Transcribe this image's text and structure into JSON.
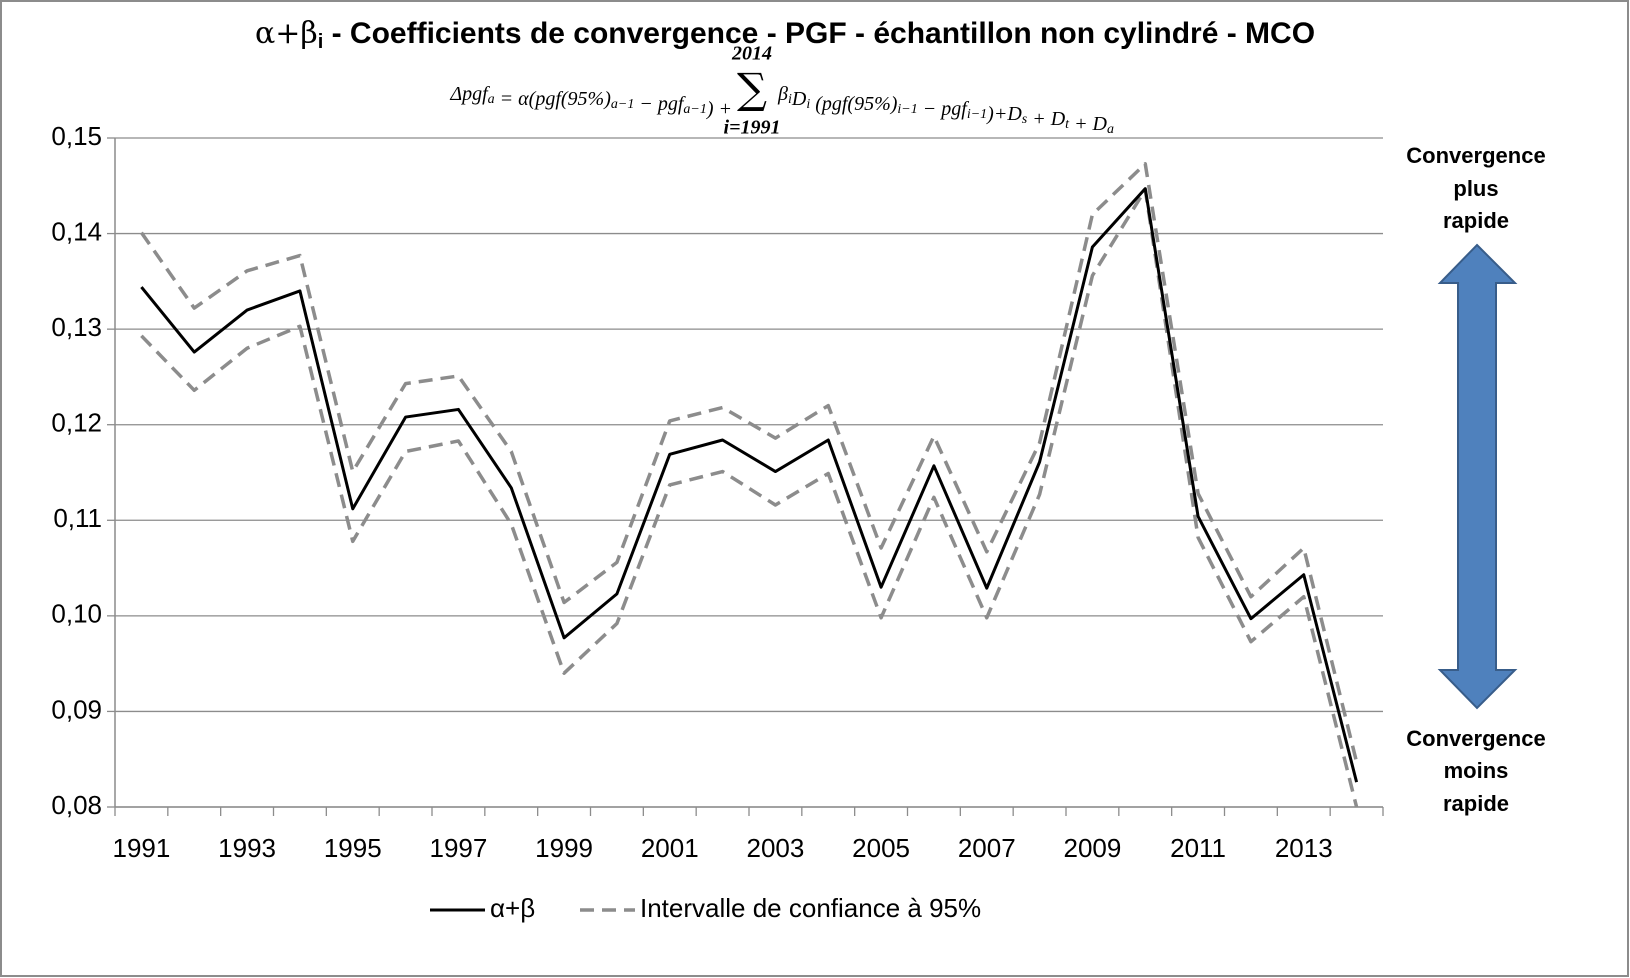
{
  "chart_data": {
    "type": "line",
    "title": {
      "main": "α+β",
      "sub": "i",
      "rest": " - Coefficients de convergence - PGF - échantillon non cylindré - MCO"
    },
    "formula": {
      "left": [
        {
          "t": "Δpgf",
          "sub": "a"
        },
        {
          "t": " = α(pgf(95%)",
          "sub": "a−1"
        },
        {
          "t": " − pgf",
          "sub": "a−1"
        },
        {
          "t": ") + "
        }
      ],
      "sum": "∑",
      "sum_from": "i=1991",
      "sum_to": "2014",
      "right": [
        {
          "t": "β",
          "sub": "i"
        },
        {
          "t": "D",
          "sub": "i"
        },
        {
          "t": " (pgf(95%)",
          "sub": "i−1"
        },
        {
          "t": " − pgf",
          "sub": "i−1"
        },
        {
          "t": ")+D",
          "sub": "s"
        },
        {
          "t": " + D",
          "sub": "t"
        },
        {
          "t": " + D",
          "sub": "a"
        }
      ]
    },
    "categories": [
      "1991",
      null,
      "1993",
      null,
      "1995",
      null,
      "1997",
      null,
      "1999",
      null,
      "2001",
      null,
      "2003",
      null,
      "2005",
      null,
      "2007",
      null,
      "2009",
      null,
      "2011",
      null,
      "2013",
      null
    ],
    "series": [
      {
        "name": "α+β",
        "color": "#000000",
        "dash": false,
        "values": [
          0.1344,
          0.1276,
          0.132,
          0.134,
          0.1112,
          0.1208,
          0.1216,
          0.1134,
          0.0977,
          0.1023,
          0.1169,
          0.1184,
          0.1151,
          0.1184,
          0.103,
          0.1157,
          0.1029,
          0.1161,
          0.1386,
          0.1447,
          0.1104,
          0.0997,
          0.1043,
          0.0826
        ]
      },
      {
        "name": "Intervalle de confiance à 95%",
        "color": "#8c8c8c",
        "dash": true,
        "values": [
          0.1401,
          0.1322,
          0.1361,
          0.1377,
          0.1151,
          0.1243,
          0.1251,
          0.1172,
          0.1014,
          0.1056,
          0.1204,
          0.1218,
          0.1186,
          0.122,
          0.1071,
          0.1188,
          0.1067,
          0.1181,
          0.142,
          0.1473,
          0.1128,
          0.102,
          0.1071,
          0.0847
        ],
        "lower": [
          0.1293,
          0.1236,
          0.128,
          0.1303,
          0.1078,
          0.1172,
          0.1183,
          0.1096,
          0.094,
          0.0992,
          0.1137,
          0.1151,
          0.1116,
          0.1149,
          0.0998,
          0.1124,
          0.0998,
          0.1127,
          0.1356,
          0.1446,
          0.1082,
          0.0973,
          0.102,
          0.08
        ]
      }
    ],
    "ylim": [
      0.08,
      0.15
    ],
    "yticks": [
      {
        "value": 0.08,
        "label": "0,08"
      },
      {
        "value": 0.09,
        "label": "0,09"
      },
      {
        "value": 0.1,
        "label": "0,10"
      },
      {
        "value": 0.11,
        "label": "0,11"
      },
      {
        "value": 0.12,
        "label": "0,12"
      },
      {
        "value": 0.13,
        "label": "0,13"
      },
      {
        "value": 0.14,
        "label": "0,14"
      },
      {
        "value": 0.15,
        "label": "0,15"
      }
    ],
    "grid": true,
    "legend": "bottom",
    "annotations": [
      {
        "lines": [
          "Convergence",
          "plus",
          "rapide"
        ]
      },
      {
        "lines": [
          "Convergence",
          "moins",
          "rapide"
        ]
      }
    ]
  }
}
